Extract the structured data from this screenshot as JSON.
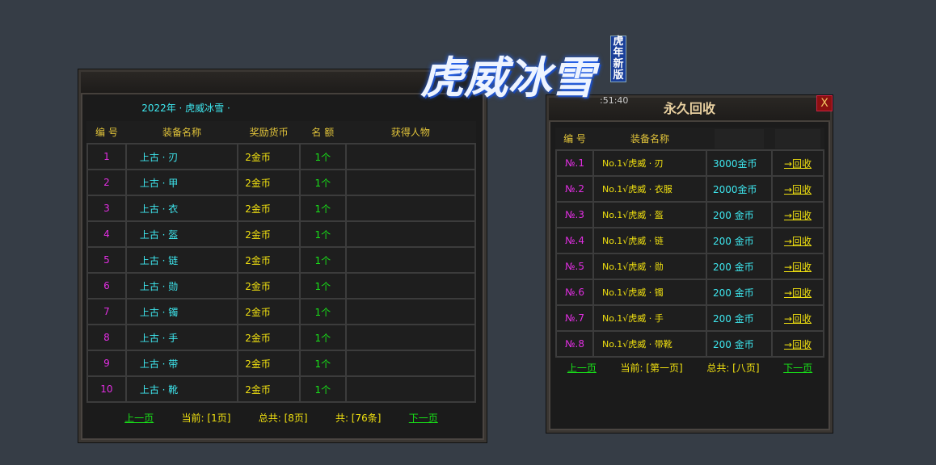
{
  "logo": {
    "title": "虎威冰雪",
    "badge": "虎年新版",
    "timer": ":51:40"
  },
  "left": {
    "subtitle": "2022年 · 虎威冰雪 ·",
    "headers": [
      "编 号",
      "装备名称",
      "奖励货币",
      "名 额",
      "获得人物"
    ],
    "rows": [
      [
        "1",
        "上古 · 刃",
        "2金币",
        "1个",
        ""
      ],
      [
        "2",
        "上古 · 甲",
        "2金币",
        "1个",
        ""
      ],
      [
        "3",
        "上古 · 衣",
        "2金币",
        "1个",
        ""
      ],
      [
        "4",
        "上古 · 盔",
        "2金币",
        "1个",
        ""
      ],
      [
        "5",
        "上古 · 链",
        "2金币",
        "1个",
        ""
      ],
      [
        "6",
        "上古 · 勋",
        "2金币",
        "1个",
        ""
      ],
      [
        "7",
        "上古 · 镯",
        "2金币",
        "1个",
        ""
      ],
      [
        "8",
        "上古 · 手",
        "2金币",
        "1个",
        ""
      ],
      [
        "9",
        "上古 · 带",
        "2金币",
        "1个",
        ""
      ],
      [
        "10",
        "上古 · 靴",
        "2金币",
        "1个",
        ""
      ]
    ],
    "footer": {
      "prev": "上一页",
      "current": "当前: [1页]",
      "total": "总共: [8页]",
      "count": "共: [76条]",
      "next": "下一页"
    }
  },
  "right": {
    "title": "永久回收",
    "close": "X",
    "headers": [
      "编 号",
      "装备名称"
    ],
    "rows": [
      [
        "№.1",
        "No.1√虎威 · 刃",
        "3000金币",
        "→回收"
      ],
      [
        "№.2",
        "No.1√虎威 · 衣服",
        "2000金币",
        "→回收"
      ],
      [
        "№.3",
        "No.1√虎威 · 盔",
        "200 金币",
        "→回收"
      ],
      [
        "№.4",
        "No.1√虎威 · 链",
        "200 金币",
        "→回收"
      ],
      [
        "№.5",
        "No.1√虎威 · 勋",
        "200 金币",
        "→回收"
      ],
      [
        "№.6",
        "No.1√虎威 · 镯",
        "200 金币",
        "→回收"
      ],
      [
        "№.7",
        "No.1√虎威 · 手",
        "200 金币",
        "→回收"
      ],
      [
        "№.8",
        "No.1√虎威 · 带靴",
        "200 金币",
        "→回收"
      ]
    ],
    "footer": {
      "prev": "上一页",
      "current": "当前: [第一页]",
      "total": "总共: [八页]",
      "next": "下一页"
    }
  }
}
